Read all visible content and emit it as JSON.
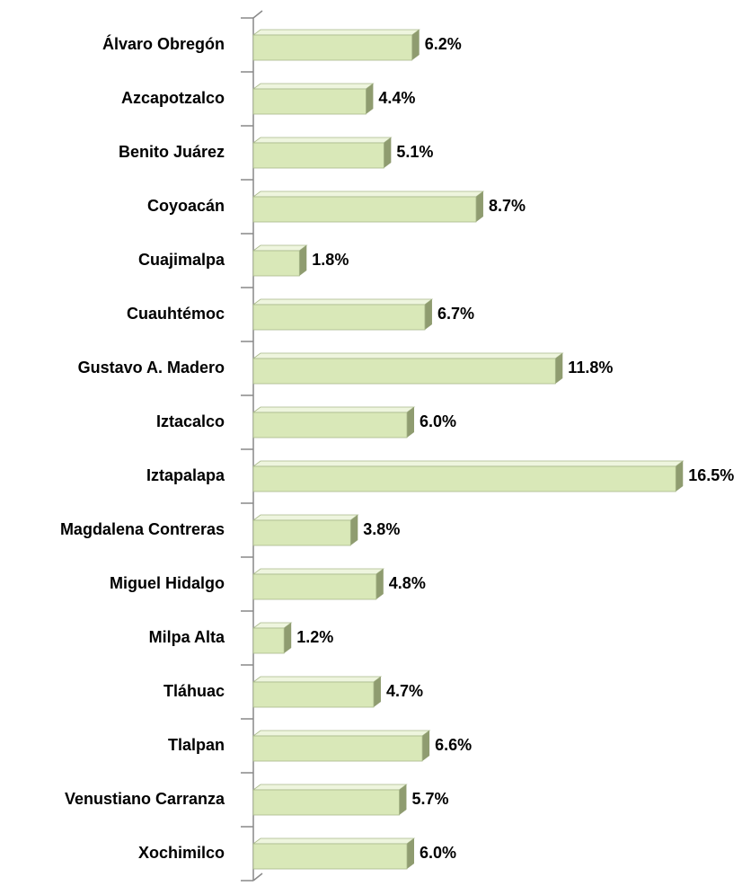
{
  "chart_data": {
    "type": "barh",
    "categories": [
      "Álvaro Obregón",
      "Azcapotzalco",
      "Benito Juárez",
      "Coyoacán",
      "Cuajimalpa",
      "Cuauhtémoc",
      "Gustavo A. Madero",
      "Iztacalco",
      "Iztapalapa",
      "Magdalena Contreras",
      "Miguel Hidalgo",
      "Milpa Alta",
      "Tláhuac",
      "Tlalpan",
      "Venustiano Carranza",
      "Xochimilco"
    ],
    "values": [
      6.2,
      4.4,
      5.1,
      8.7,
      1.8,
      6.7,
      11.8,
      6.0,
      16.5,
      3.8,
      4.8,
      1.2,
      4.7,
      6.6,
      5.7,
      6.0
    ],
    "value_labels": [
      "6.2%",
      "4.4%",
      "5.1%",
      "8.7%",
      "1.8%",
      "6.7%",
      "11.8%",
      "6.0%",
      "16.5%",
      "3.8%",
      "4.8%",
      "1.2%",
      "4.7%",
      "6.6%",
      "5.7%",
      "6.0%"
    ],
    "color": "#d9e8b8"
  }
}
